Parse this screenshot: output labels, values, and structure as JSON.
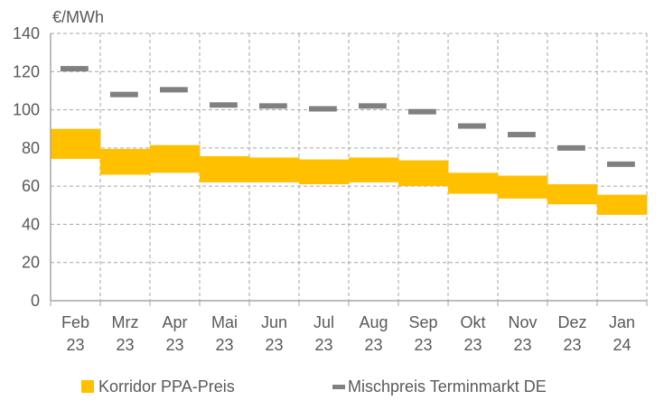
{
  "chart_data": {
    "type": "bar",
    "title": "",
    "ylabel": "€/MWh",
    "xlabel": "",
    "ylim": [
      0,
      140
    ],
    "yticks": [
      0,
      20,
      40,
      60,
      80,
      100,
      120,
      140
    ],
    "grid": true,
    "legend_placement": "bottom",
    "categories": [
      [
        "Feb",
        "23"
      ],
      [
        "Mrz",
        "23"
      ],
      [
        "Apr",
        "23"
      ],
      [
        "Mai",
        "23"
      ],
      [
        "Jun",
        "23"
      ],
      [
        "Jul",
        "23"
      ],
      [
        "Aug",
        "23"
      ],
      [
        "Sep",
        "23"
      ],
      [
        "Okt",
        "23"
      ],
      [
        "Nov",
        "23"
      ],
      [
        "Dez",
        "23"
      ],
      [
        "Jan",
        "24"
      ]
    ],
    "series": [
      {
        "name": "Korridor PPA-Preis",
        "type": "range-bar",
        "color": "#FFC000",
        "low": [
          74.3,
          66,
          67,
          62,
          62,
          61,
          62,
          60,
          56,
          53.5,
          50.5,
          45
        ],
        "high": [
          90,
          79.5,
          81.5,
          75.7,
          75,
          74,
          75,
          73.5,
          67,
          65.5,
          61,
          55.5
        ]
      },
      {
        "name": "Mischpreis Terminmarkt DE",
        "type": "marker",
        "color": "#808080",
        "values": [
          121.5,
          108,
          110.5,
          102.5,
          102,
          100.5,
          102,
          99,
          91.5,
          87,
          80,
          71.5
        ]
      }
    ]
  }
}
